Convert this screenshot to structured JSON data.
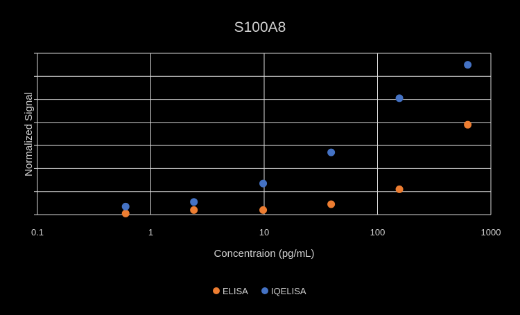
{
  "chart_data": {
    "type": "scatter",
    "title": "S100A8",
    "xlabel": "Concentraion (pg/mL)",
    "ylabel": "Normalized Signal",
    "x_scale": "log",
    "xlim": [
      0.1,
      1000
    ],
    "x_ticks": [
      "0.1",
      "1",
      "10",
      "100",
      "1000"
    ],
    "ylim": [
      0,
      7
    ],
    "y_tick_labels_shown": false,
    "grid": true,
    "legend_position": "bottom",
    "background": "#000000",
    "text_color": "#d0d0d0",
    "grid_color": "#d9d9d9",
    "series": [
      {
        "name": "ELISA",
        "color": "#ed7d31",
        "points": [
          {
            "x": 0.6,
            "y": 0.05
          },
          {
            "x": 2.4,
            "y": 0.2
          },
          {
            "x": 9.8,
            "y": 0.2
          },
          {
            "x": 39,
            "y": 0.45
          },
          {
            "x": 156,
            "y": 1.1
          },
          {
            "x": 625,
            "y": 3.9
          }
        ]
      },
      {
        "name": "IQELISA",
        "color": "#4472c4",
        "points": [
          {
            "x": 0.6,
            "y": 0.35
          },
          {
            "x": 2.4,
            "y": 0.55
          },
          {
            "x": 9.8,
            "y": 1.35
          },
          {
            "x": 39,
            "y": 2.7
          },
          {
            "x": 156,
            "y": 5.05
          },
          {
            "x": 625,
            "y": 6.5
          }
        ]
      }
    ]
  }
}
